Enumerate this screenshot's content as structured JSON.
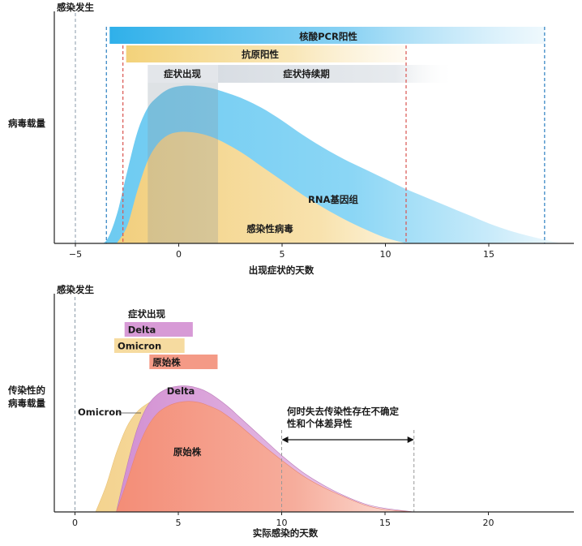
{
  "chart_data": [
    {
      "type": "area",
      "title": "",
      "xlabel": "出现症状的天数",
      "ylabel": "病毒载量",
      "xlim": [
        -6,
        19
      ],
      "x_ticks": [
        -5,
        0,
        5,
        10,
        15
      ],
      "x_tick_labels": [
        "−5",
        "0",
        "5",
        "10",
        "15"
      ],
      "infection_marker": {
        "label": "感染发生",
        "x": -5
      },
      "bands": [
        {
          "name": "核酸PCR阳性",
          "start": -3.5,
          "end": 17.7
        },
        {
          "name": "抗原阳性",
          "start": -2.7,
          "end": 11
        },
        {
          "name": "症状出现",
          "start": -1.5,
          "end": 1.9
        },
        {
          "name": "症状持续期",
          "start": 1.9,
          "end": 13
        }
      ],
      "series": [
        {
          "name": "RNA基因组",
          "x": [
            -4,
            -3.5,
            -3,
            -2.5,
            -2,
            -1.5,
            -1,
            -0.5,
            0,
            0.5,
            1,
            1.5,
            2,
            3,
            4,
            5,
            6,
            7,
            8,
            9,
            10,
            11,
            12,
            13,
            14,
            15,
            16,
            17,
            18.5
          ],
          "values": [
            0,
            2,
            20,
            50,
            78,
            95,
            103,
            108,
            110,
            110.5,
            110,
            109,
            107,
            102,
            95,
            86,
            76,
            67,
            59,
            52,
            45,
            38,
            32,
            26,
            20,
            14,
            9,
            5,
            0
          ]
        },
        {
          "name": "感染性病毒",
          "x": [
            -3,
            -2.5,
            -2,
            -1.5,
            -1,
            -0.5,
            0,
            0.5,
            1,
            1.5,
            2,
            3,
            4,
            5,
            6,
            7,
            8,
            9,
            10,
            11
          ],
          "values": [
            0,
            12,
            37,
            58,
            70,
            76,
            78,
            78,
            77,
            75,
            72,
            64,
            54,
            44,
            34,
            25,
            17,
            10,
            4,
            0
          ]
        }
      ],
      "annotations": [
        "RNA基因组",
        "感染性病毒"
      ]
    },
    {
      "type": "area",
      "title": "",
      "xlabel": "实际感染的天数",
      "ylabel": "传染性的病毒载量",
      "xlim": [
        -1,
        24
      ],
      "x_ticks": [
        0,
        5,
        10,
        15,
        20
      ],
      "x_tick_labels": [
        "0",
        "5",
        "10",
        "15",
        "20"
      ],
      "infection_marker": {
        "label": "感染发生",
        "x": 0
      },
      "symptom_onset": {
        "label": "症状出现",
        "ranges": [
          {
            "name": "Delta",
            "start": 2.4,
            "end": 5.7
          },
          {
            "name": "Omicron",
            "start": 1.9,
            "end": 5.3
          },
          {
            "name": "原始株",
            "start": 3.6,
            "end": 6.9
          }
        ]
      },
      "series": [
        {
          "name": "Omicron",
          "x": [
            1,
            1.5,
            2,
            2.5,
            3,
            3.5,
            4,
            4.5,
            5,
            5.5,
            6,
            6.5,
            7,
            8,
            9,
            10,
            11,
            12,
            13,
            14,
            15,
            16.4
          ],
          "values": [
            0,
            22,
            50,
            72,
            85,
            92,
            96,
            97,
            96,
            94,
            91,
            86,
            80,
            67,
            53,
            40,
            29,
            19,
            11,
            6,
            2,
            0
          ]
        },
        {
          "name": "Delta",
          "x": [
            2,
            2.5,
            3,
            3.5,
            4,
            4.5,
            5,
            5.5,
            6,
            6.5,
            7,
            7.5,
            8,
            9,
            10,
            11,
            12,
            13,
            14,
            15,
            16.4
          ],
          "values": [
            0,
            38,
            70,
            90,
            100,
            105,
            107,
            107,
            105,
            101,
            95,
            88,
            80,
            64,
            48,
            34,
            23,
            14,
            7,
            3,
            0
          ]
        },
        {
          "name": "原始株",
          "x": [
            2,
            2.5,
            3,
            3.5,
            4,
            4.5,
            5,
            5.5,
            6,
            6.5,
            7,
            7.5,
            8,
            9,
            10,
            11,
            12,
            13,
            14,
            15,
            16.4
          ],
          "values": [
            0,
            25,
            52,
            72,
            84,
            90,
            93,
            94,
            93,
            90,
            86,
            80,
            73,
            58,
            44,
            31,
            21,
            13,
            6,
            2,
            0
          ]
        }
      ],
      "uncertainty": {
        "start": 10,
        "end": 16.4,
        "text_line1": "何时失去传染性存在不确定",
        "text_line2": "性和个体差异性"
      }
    }
  ],
  "colors": {
    "pcr": "#3fb6ec",
    "antigen": "#f5d98a",
    "symptom_onset": "#a9b2bd",
    "symptom_duration": "#d6dbe2",
    "rna": "#7fd0f3",
    "virus": "#f4d68d",
    "delta": "#d79ad6",
    "omicron": "#f6dba0",
    "original": "#f49a86",
    "blue_dash": "#2a7fc0",
    "red_dash": "#d9534f"
  }
}
